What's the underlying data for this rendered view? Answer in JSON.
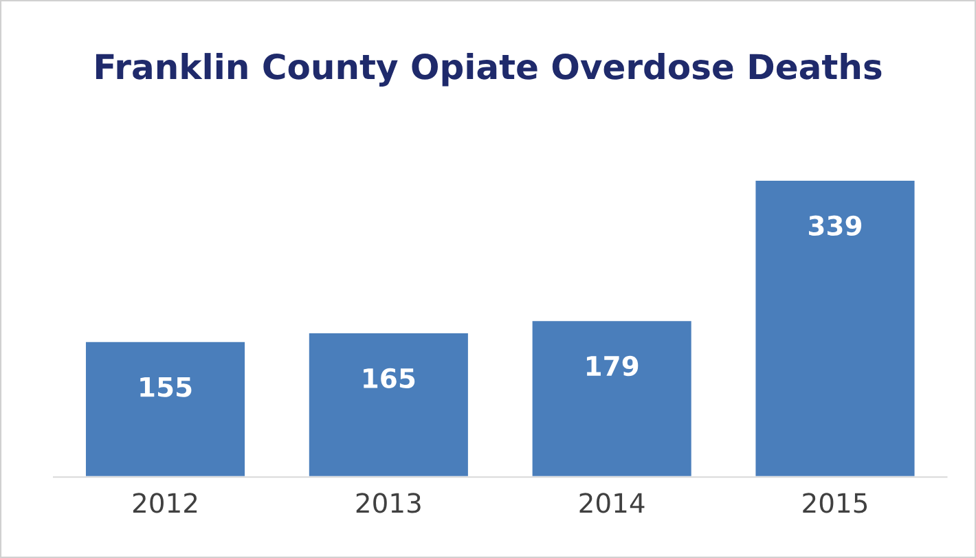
{
  "chart_data": {
    "type": "bar",
    "title": "Franklin County Opiate Overdose Deaths",
    "categories": [
      "2012",
      "2013",
      "2014",
      "2015"
    ],
    "values": [
      155,
      165,
      179,
      339
    ],
    "color": "#4a7ebb",
    "data_labels": true,
    "tick_labels": "x",
    "grid": false,
    "legend": false
  }
}
